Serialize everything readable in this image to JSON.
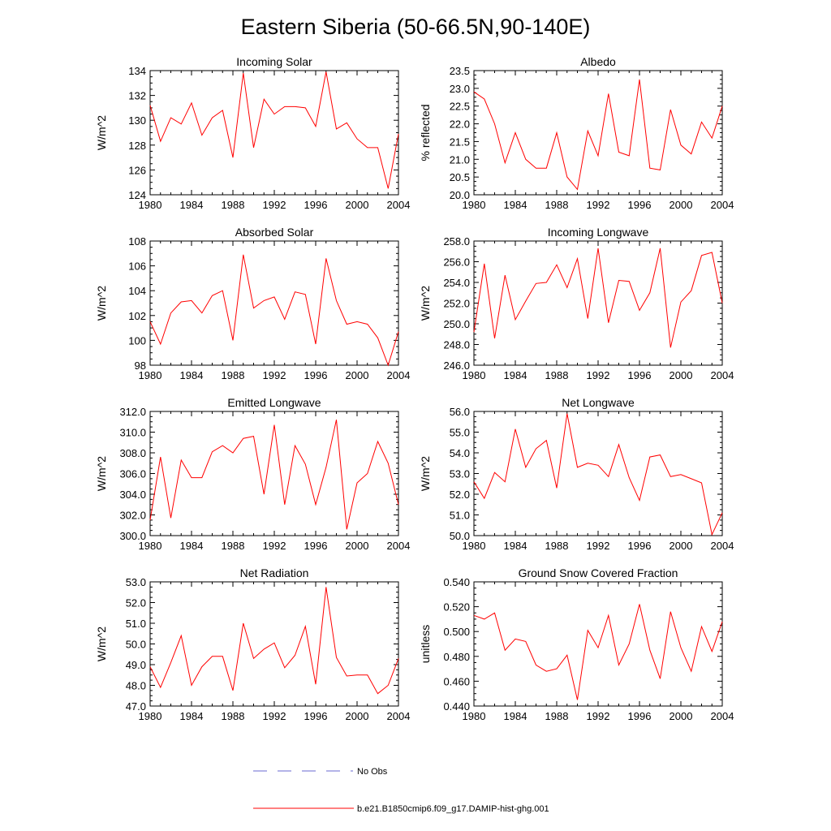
{
  "title": "Eastern Siberia (50-66.5N,90-140E)",
  "legend": {
    "obs_label": "No Obs",
    "obs_color": "#6a6ad0",
    "model_label": "b.e21.B1850cmip6.f09_g17.DAMIP-hist-ghg.001",
    "model_color": "#ff0000"
  },
  "chart_data": [
    {
      "type": "line",
      "title": "Incoming Solar",
      "ylabel": "W/m^2",
      "x": [
        1980,
        1981,
        1982,
        1983,
        1984,
        1985,
        1986,
        1987,
        1988,
        1989,
        1990,
        1991,
        1992,
        1993,
        1994,
        1995,
        1996,
        1997,
        1998,
        1999,
        2000,
        2001,
        2002,
        2003,
        2004
      ],
      "values": [
        131.2,
        128.3,
        130.2,
        129.7,
        131.4,
        128.8,
        130.2,
        130.8,
        127.0,
        133.8,
        127.8,
        131.7,
        130.5,
        131.1,
        131.1,
        131.0,
        129.5,
        133.9,
        129.3,
        129.8,
        128.5,
        127.8,
        127.8,
        124.5,
        128.9
      ],
      "xlim": [
        1980,
        2004
      ],
      "ylim": [
        124,
        134
      ],
      "xticks": [
        1980,
        1984,
        1988,
        1992,
        1996,
        2000,
        2004
      ],
      "yticks": [
        "124",
        "126",
        "128",
        "130",
        "132",
        "134"
      ]
    },
    {
      "type": "line",
      "title": "Albedo",
      "ylabel": "% reflected",
      "x": [
        1980,
        1981,
        1982,
        1983,
        1984,
        1985,
        1986,
        1987,
        1988,
        1989,
        1990,
        1991,
        1992,
        1993,
        1994,
        1995,
        1996,
        1997,
        1998,
        1999,
        2000,
        2001,
        2002,
        2003,
        2004
      ],
      "values": [
        22.9,
        22.7,
        22.0,
        20.9,
        21.75,
        21.0,
        20.75,
        20.75,
        21.75,
        20.5,
        20.15,
        21.8,
        21.1,
        22.85,
        21.2,
        21.1,
        23.25,
        20.75,
        20.7,
        22.4,
        21.4,
        21.15,
        22.05,
        21.6,
        22.5
      ],
      "xlim": [
        1980,
        2004
      ],
      "ylim": [
        20.0,
        23.5
      ],
      "xticks": [
        1980,
        1984,
        1988,
        1992,
        1996,
        2000,
        2004
      ],
      "yticks": [
        "20.0",
        "20.5",
        "21.0",
        "21.5",
        "22.0",
        "22.5",
        "23.0",
        "23.5"
      ]
    },
    {
      "type": "line",
      "title": "Absorbed Solar",
      "ylabel": "W/m^2",
      "x": [
        1980,
        1981,
        1982,
        1983,
        1984,
        1985,
        1986,
        1987,
        1988,
        1989,
        1990,
        1991,
        1992,
        1993,
        1994,
        1995,
        1996,
        1997,
        1998,
        1999,
        2000,
        2001,
        2002,
        2003,
        2004
      ],
      "values": [
        101.5,
        99.7,
        102.2,
        103.1,
        103.2,
        102.2,
        103.6,
        104.0,
        100.0,
        106.9,
        102.6,
        103.2,
        103.5,
        101.7,
        103.9,
        103.7,
        99.7,
        106.6,
        103.2,
        101.3,
        101.5,
        101.3,
        100.2,
        98.0,
        100.7
      ],
      "xlim": [
        1980,
        2004
      ],
      "ylim": [
        98,
        108
      ],
      "xticks": [
        1980,
        1984,
        1988,
        1992,
        1996,
        2000,
        2004
      ],
      "yticks": [
        "98",
        "100",
        "102",
        "104",
        "106",
        "108"
      ]
    },
    {
      "type": "line",
      "title": "Incoming Longwave",
      "ylabel": "W/m^2",
      "x": [
        1980,
        1981,
        1982,
        1983,
        1984,
        1985,
        1986,
        1987,
        1988,
        1989,
        1990,
        1991,
        1992,
        1993,
        1994,
        1995,
        1996,
        1997,
        1998,
        1999,
        2000,
        2001,
        2002,
        2003,
        2004
      ],
      "values": [
        249.2,
        255.8,
        248.6,
        254.7,
        250.4,
        252.2,
        253.9,
        254.0,
        255.7,
        253.5,
        256.3,
        250.5,
        257.3,
        250.1,
        254.2,
        254.1,
        251.3,
        253.0,
        257.3,
        247.7,
        252.1,
        253.2,
        256.6,
        256.9,
        252.0
      ],
      "xlim": [
        1980,
        2004
      ],
      "ylim": [
        246.0,
        258.0
      ],
      "xticks": [
        1980,
        1984,
        1988,
        1992,
        1996,
        2000,
        2004
      ],
      "yticks": [
        "246.0",
        "248.0",
        "250.0",
        "252.0",
        "254.0",
        "256.0",
        "258.0"
      ]
    },
    {
      "type": "line",
      "title": "Emitted Longwave",
      "ylabel": "W/m^2",
      "x": [
        1980,
        1981,
        1982,
        1983,
        1984,
        1985,
        1986,
        1987,
        1988,
        1989,
        1990,
        1991,
        1992,
        1993,
        1994,
        1995,
        1996,
        1997,
        1998,
        1999,
        2000,
        2001,
        2002,
        2003,
        2004
      ],
      "values": [
        301.5,
        307.6,
        301.7,
        307.3,
        305.6,
        305.6,
        308.1,
        308.7,
        308.0,
        309.4,
        309.6,
        304.0,
        310.7,
        303.0,
        308.7,
        306.9,
        303.0,
        306.6,
        311.2,
        300.6,
        305.1,
        306.0,
        309.1,
        307.0,
        303.0
      ],
      "xlim": [
        1980,
        2004
      ],
      "ylim": [
        300.0,
        312.0
      ],
      "xticks": [
        1980,
        1984,
        1988,
        1992,
        1996,
        2000,
        2004
      ],
      "yticks": [
        "300.0",
        "302.0",
        "304.0",
        "306.0",
        "308.0",
        "310.0",
        "312.0"
      ]
    },
    {
      "type": "line",
      "title": "Net Longwave",
      "ylabel": "W/m^2",
      "x": [
        1980,
        1981,
        1982,
        1983,
        1984,
        1985,
        1986,
        1987,
        1988,
        1989,
        1990,
        1991,
        1992,
        1993,
        1994,
        1995,
        1996,
        1997,
        1998,
        1999,
        2000,
        2001,
        2002,
        2003,
        2004
      ],
      "values": [
        52.6,
        51.8,
        53.05,
        52.6,
        55.15,
        53.3,
        54.2,
        54.6,
        52.3,
        55.9,
        53.3,
        53.5,
        53.4,
        52.85,
        54.4,
        52.8,
        51.7,
        53.8,
        53.9,
        52.85,
        52.95,
        52.75,
        52.55,
        50.05,
        51.1
      ],
      "xlim": [
        1980,
        2004
      ],
      "ylim": [
        50.0,
        56.0
      ],
      "xticks": [
        1980,
        1984,
        1988,
        1992,
        1996,
        2000,
        2004
      ],
      "yticks": [
        "50.0",
        "51.0",
        "52.0",
        "53.0",
        "54.0",
        "55.0",
        "56.0"
      ]
    },
    {
      "type": "line",
      "title": "Net Radiation",
      "ylabel": "W/m^2",
      "x": [
        1980,
        1981,
        1982,
        1983,
        1984,
        1985,
        1986,
        1987,
        1988,
        1989,
        1990,
        1991,
        1992,
        1993,
        1994,
        1995,
        1996,
        1997,
        1998,
        1999,
        2000,
        2001,
        2002,
        2003,
        2004
      ],
      "values": [
        48.9,
        47.9,
        49.1,
        50.4,
        48.0,
        48.9,
        49.4,
        49.4,
        47.75,
        51.0,
        49.3,
        49.75,
        50.05,
        48.85,
        49.45,
        50.85,
        48.05,
        52.75,
        49.35,
        48.45,
        48.5,
        48.5,
        47.6,
        48.0,
        49.3
      ],
      "xlim": [
        1980,
        2004
      ],
      "ylim": [
        47.0,
        53.0
      ],
      "xticks": [
        1980,
        1984,
        1988,
        1992,
        1996,
        2000,
        2004
      ],
      "yticks": [
        "47.0",
        "48.0",
        "49.0",
        "50.0",
        "51.0",
        "52.0",
        "53.0"
      ]
    },
    {
      "type": "line",
      "title": "Ground Snow Covered Fraction",
      "ylabel": "unitless",
      "x": [
        1980,
        1981,
        1982,
        1983,
        1984,
        1985,
        1986,
        1987,
        1988,
        1989,
        1990,
        1991,
        1992,
        1993,
        1994,
        1995,
        1996,
        1997,
        1998,
        1999,
        2000,
        2001,
        2002,
        2003,
        2004
      ],
      "values": [
        0.513,
        0.51,
        0.515,
        0.485,
        0.494,
        0.492,
        0.473,
        0.468,
        0.47,
        0.481,
        0.445,
        0.501,
        0.487,
        0.513,
        0.473,
        0.49,
        0.522,
        0.485,
        0.462,
        0.516,
        0.487,
        0.468,
        0.504,
        0.484,
        0.508
      ],
      "xlim": [
        1980,
        2004
      ],
      "ylim": [
        0.44,
        0.54
      ],
      "xticks": [
        1980,
        1984,
        1988,
        1992,
        1996,
        2000,
        2004
      ],
      "yticks": [
        "0.440",
        "0.460",
        "0.480",
        "0.500",
        "0.520",
        "0.540"
      ]
    }
  ]
}
